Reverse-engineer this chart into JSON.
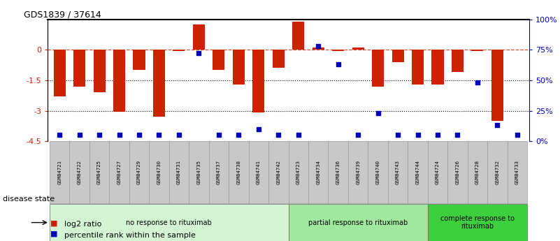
{
  "title": "GDS1839 / 37614",
  "samples": [
    "GSM84721",
    "GSM84722",
    "GSM84725",
    "GSM84727",
    "GSM84729",
    "GSM84730",
    "GSM84731",
    "GSM84735",
    "GSM84737",
    "GSM84738",
    "GSM84741",
    "GSM84742",
    "GSM84723",
    "GSM84734",
    "GSM84736",
    "GSM84739",
    "GSM84740",
    "GSM84743",
    "GSM84744",
    "GSM84724",
    "GSM84726",
    "GSM84728",
    "GSM84732",
    "GSM84733"
  ],
  "log2_ratio": [
    -2.3,
    -1.8,
    -2.1,
    -3.05,
    -1.0,
    -3.3,
    -0.05,
    1.25,
    -1.0,
    -1.7,
    -3.1,
    -0.9,
    1.4,
    0.1,
    -0.05,
    0.1,
    -1.8,
    -0.6,
    -1.7,
    -1.7,
    -1.1,
    -0.05,
    -3.5,
    0.02
  ],
  "percentile_rank": [
    5,
    5,
    5,
    5,
    5,
    5,
    5,
    72,
    5,
    5,
    10,
    5,
    5,
    78,
    63,
    5,
    23,
    5,
    5,
    5,
    5,
    48,
    13,
    5
  ],
  "groups": [
    {
      "label": "no response to rituximab",
      "start": 0,
      "end": 11,
      "color": "#d4f5d4"
    },
    {
      "label": "partial response to rituximab",
      "start": 12,
      "end": 18,
      "color": "#a0e8a0"
    },
    {
      "label": "complete response to\nrituximab",
      "start": 19,
      "end": 23,
      "color": "#3ecf3e"
    }
  ],
  "bar_color": "#cc2200",
  "dot_color": "#0000bb",
  "ylim_left": [
    -4.5,
    1.5
  ],
  "ylim_right": [
    0,
    100
  ],
  "dotted_lines": [
    -1.5,
    -3.0
  ],
  "background_color": "#ffffff",
  "legend_items": [
    {
      "label": "log2 ratio",
      "color": "#cc2200"
    },
    {
      "label": "percentile rank within the sample",
      "color": "#0000bb"
    }
  ]
}
